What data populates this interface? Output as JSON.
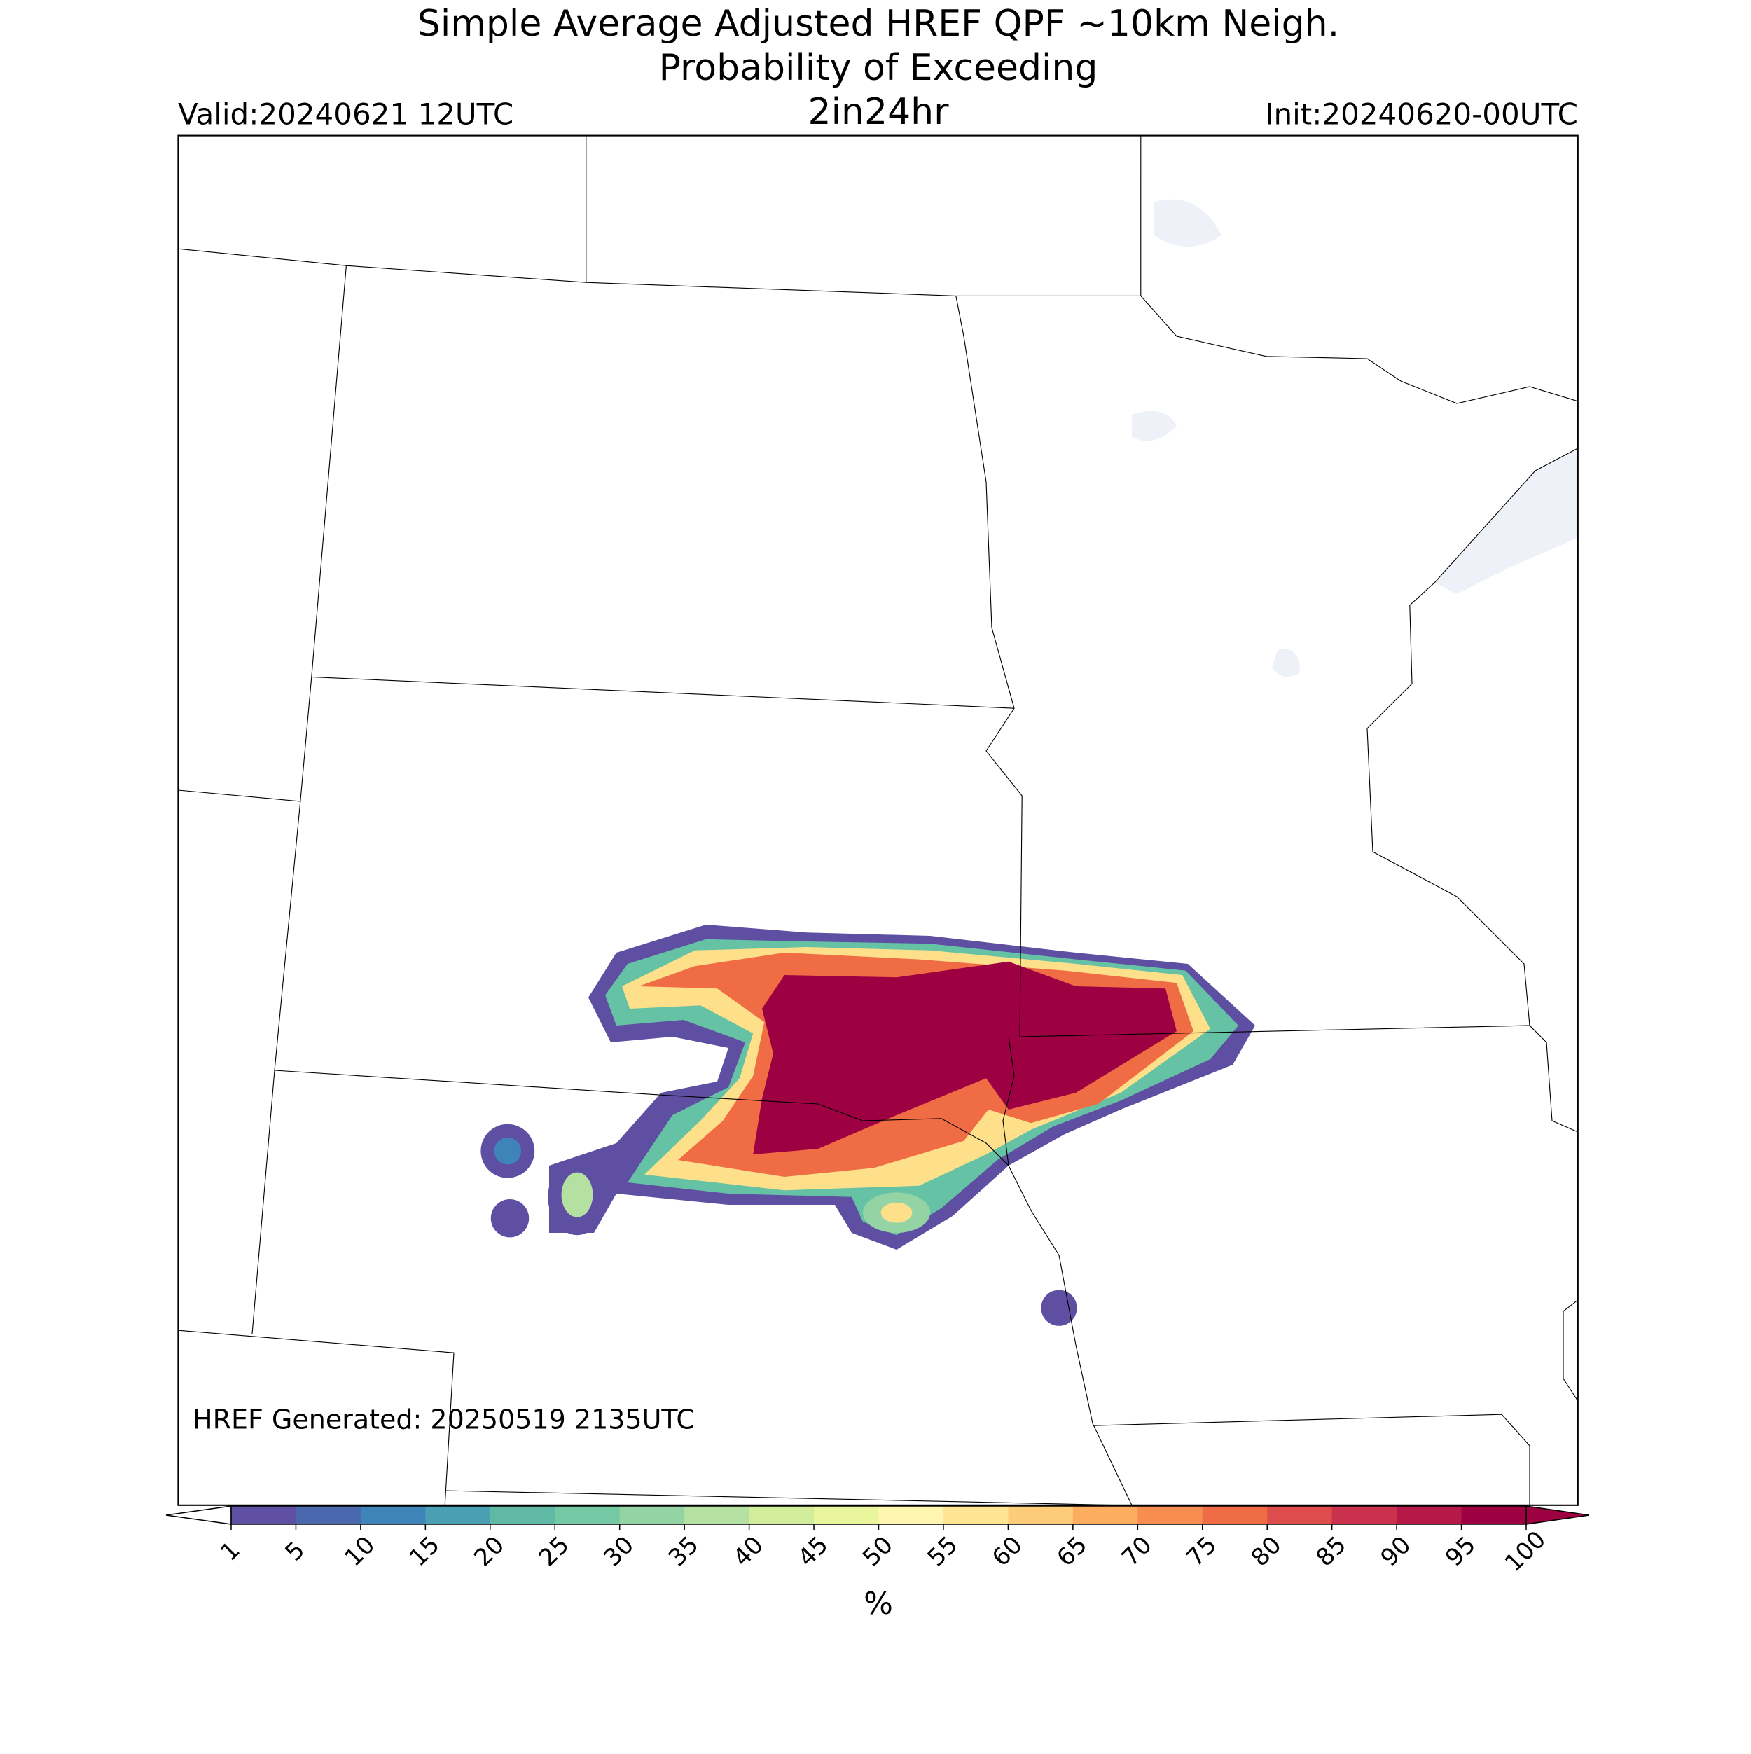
{
  "header": {
    "title_line1": "Simple Average Adjusted HREF QPF ~10km Neigh.",
    "title_line2": "Probability of Exceeding",
    "threshold": "2in24hr",
    "valid": "Valid:20240621 12UTC",
    "init": "Init:20240620-00UTC"
  },
  "footnote": "HREF Generated: 20250519 2135UTC",
  "colorbar": {
    "label": "%",
    "ticks": [
      1,
      5,
      10,
      15,
      20,
      25,
      30,
      35,
      40,
      45,
      50,
      55,
      60,
      65,
      70,
      75,
      80,
      85,
      90,
      95,
      100
    ],
    "colors": [
      "#5e4fa2",
      "#4a68ae",
      "#3f84b9",
      "#4a9fb2",
      "#5fb9a5",
      "#75c8a4",
      "#94d4a4",
      "#b4e0a2",
      "#d1ed9c",
      "#e9f59b",
      "#fef6b0",
      "#fee593",
      "#fdcc7a",
      "#fdad60",
      "#f88d51",
      "#f06c45",
      "#de4d4b",
      "#c9314c",
      "#b41947",
      "#9e0142"
    ],
    "under_color": "#ffffff",
    "over_color": "#9e0142"
  }
}
